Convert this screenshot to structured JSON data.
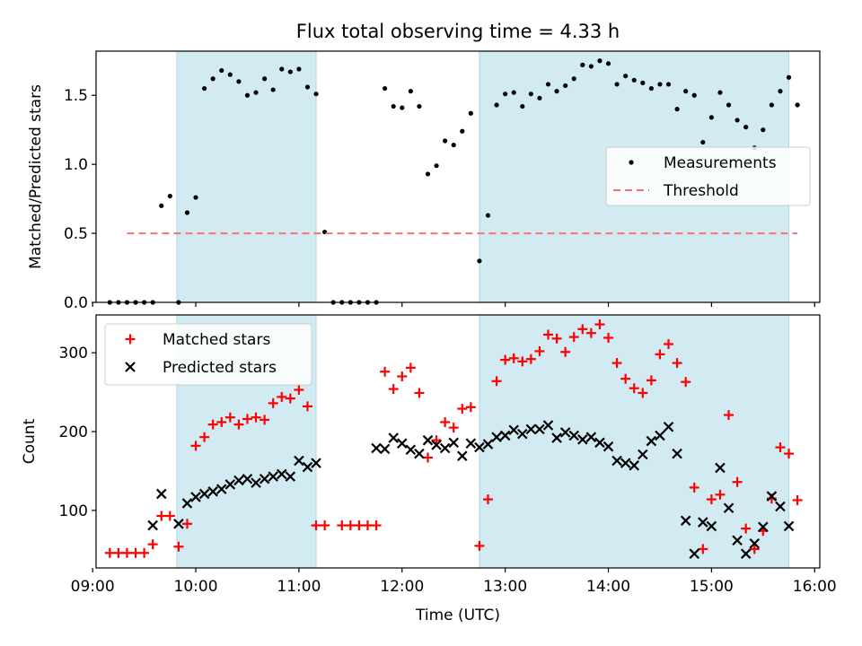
{
  "title": "Flux total observing time = 4.33 h",
  "colors": {
    "shade": "#add8e6",
    "measurement": "#000000",
    "threshold": "#ff7070",
    "matched": "#ff0000",
    "predicted": "#000000"
  },
  "chart_data": [
    {
      "type": "scatter",
      "ylabel": "Matched/Predicted stars",
      "ylim": [
        0,
        1.82
      ],
      "yticks": [
        0.0,
        0.5,
        1.0,
        1.5
      ],
      "ytick_labels": [
        "0.0",
        "0.5",
        "1.0",
        "1.5"
      ],
      "xlim": [
        "09:02",
        "16:03"
      ],
      "shaded_intervals": [
        [
          "09:49",
          "11:10"
        ],
        [
          "12:45",
          "15:45"
        ]
      ],
      "legend": {
        "location": "center right",
        "entries": [
          "Measurements",
          "Threshold"
        ]
      },
      "series": [
        {
          "name": "Measurements",
          "marker": "dot",
          "points": [
            [
              "09:10",
              0
            ],
            [
              "09:15",
              0
            ],
            [
              "09:20",
              0
            ],
            [
              "09:25",
              0
            ],
            [
              "09:30",
              0
            ],
            [
              "09:35",
              0
            ],
            [
              "09:40",
              0.7
            ],
            [
              "09:45",
              0.77
            ],
            [
              "09:50",
              0
            ],
            [
              "09:55",
              0.65
            ],
            [
              "10:00",
              0.76
            ],
            [
              "10:05",
              1.55
            ],
            [
              "10:10",
              1.62
            ],
            [
              "10:15",
              1.68
            ],
            [
              "10:20",
              1.65
            ],
            [
              "10:25",
              1.6
            ],
            [
              "10:30",
              1.5
            ],
            [
              "10:35",
              1.52
            ],
            [
              "10:40",
              1.62
            ],
            [
              "10:45",
              1.54
            ],
            [
              "10:50",
              1.69
            ],
            [
              "10:55",
              1.67
            ],
            [
              "11:00",
              1.69
            ],
            [
              "11:05",
              1.56
            ],
            [
              "11:10",
              1.51
            ],
            [
              "11:15",
              0.51
            ],
            [
              "11:20",
              0
            ],
            [
              "11:25",
              0
            ],
            [
              "11:30",
              0
            ],
            [
              "11:35",
              0
            ],
            [
              "11:40",
              0
            ],
            [
              "11:45",
              0
            ],
            [
              "11:50",
              1.55
            ],
            [
              "11:55",
              1.42
            ],
            [
              "12:00",
              1.41
            ],
            [
              "12:05",
              1.53
            ],
            [
              "12:10",
              1.42
            ],
            [
              "12:15",
              0.93
            ],
            [
              "12:20",
              0.99
            ],
            [
              "12:25",
              1.17
            ],
            [
              "12:30",
              1.14
            ],
            [
              "12:35",
              1.24
            ],
            [
              "12:40",
              1.37
            ],
            [
              "12:45",
              0.3
            ],
            [
              "12:50",
              0.63
            ],
            [
              "12:55",
              1.43
            ],
            [
              "13:00",
              1.51
            ],
            [
              "13:05",
              1.52
            ],
            [
              "13:10",
              1.42
            ],
            [
              "13:15",
              1.51
            ],
            [
              "13:20",
              1.48
            ],
            [
              "13:25",
              1.58
            ],
            [
              "13:30",
              1.53
            ],
            [
              "13:35",
              1.57
            ],
            [
              "13:40",
              1.62
            ],
            [
              "13:45",
              1.72
            ],
            [
              "13:50",
              1.71
            ],
            [
              "13:55",
              1.75
            ],
            [
              "14:00",
              1.73
            ],
            [
              "14:05",
              1.58
            ],
            [
              "14:10",
              1.64
            ],
            [
              "14:15",
              1.61
            ],
            [
              "14:20",
              1.59
            ],
            [
              "14:25",
              1.55
            ],
            [
              "14:30",
              1.58
            ],
            [
              "14:35",
              1.58
            ],
            [
              "14:40",
              1.4
            ],
            [
              "14:45",
              1.53
            ],
            [
              "14:50",
              1.5
            ],
            [
              "14:55",
              1.16
            ],
            [
              "15:00",
              1.34
            ],
            [
              "15:05",
              1.52
            ],
            [
              "15:10",
              1.43
            ],
            [
              "15:15",
              1.32
            ],
            [
              "15:20",
              1.27
            ],
            [
              "15:25",
              1.12
            ],
            [
              "15:30",
              1.25
            ],
            [
              "15:35",
              1.43
            ],
            [
              "15:40",
              1.53
            ],
            [
              "15:45",
              1.63
            ],
            [
              "15:50",
              1.43
            ]
          ]
        },
        {
          "name": "Threshold",
          "style": "dashed",
          "points": [
            [
              "09:20",
              0.5
            ],
            [
              "15:50",
              0.5
            ]
          ]
        }
      ]
    },
    {
      "type": "scatter",
      "xlabel": "Time (UTC)",
      "ylabel": "Count",
      "ylim": [
        27,
        348
      ],
      "yticks": [
        100,
        200,
        300
      ],
      "ytick_labels": [
        "100",
        "200",
        "300"
      ],
      "xlim": [
        "09:02",
        "16:03"
      ],
      "xticks": [
        "09:00",
        "10:00",
        "11:00",
        "12:00",
        "13:00",
        "14:00",
        "15:00",
        "16:00"
      ],
      "shaded_intervals": [
        [
          "09:49",
          "11:10"
        ],
        [
          "12:45",
          "15:45"
        ]
      ],
      "legend": {
        "location": "upper left",
        "entries": [
          "Matched stars",
          "Predicted stars"
        ]
      },
      "series": [
        {
          "name": "Matched stars",
          "marker": "plus",
          "points": [
            [
              "09:10",
              46
            ],
            [
              "09:15",
              46
            ],
            [
              "09:20",
              46
            ],
            [
              "09:25",
              46
            ],
            [
              "09:30",
              46
            ],
            [
              "09:35",
              57
            ],
            [
              "09:40",
              93
            ],
            [
              "09:45",
              93
            ],
            [
              "09:50",
              54
            ],
            [
              "09:55",
              83
            ],
            [
              "10:00",
              182
            ],
            [
              "10:05",
              193
            ],
            [
              "10:10",
              209
            ],
            [
              "10:15",
              212
            ],
            [
              "10:20",
              218
            ],
            [
              "10:25",
              209
            ],
            [
              "10:30",
              216
            ],
            [
              "10:35",
              218
            ],
            [
              "10:40",
              215
            ],
            [
              "10:45",
              236
            ],
            [
              "10:50",
              244
            ],
            [
              "10:55",
              242
            ],
            [
              "11:00",
              253
            ],
            [
              "11:05",
              232
            ],
            [
              "11:10",
              81
            ],
            [
              "11:15",
              81
            ],
            [
              "11:25",
              81
            ],
            [
              "11:30",
              81
            ],
            [
              "11:35",
              81
            ],
            [
              "11:40",
              81
            ],
            [
              "11:45",
              81
            ],
            [
              "11:50",
              276
            ],
            [
              "11:55",
              254
            ],
            [
              "12:00",
              270
            ],
            [
              "12:05",
              281
            ],
            [
              "12:10",
              249
            ],
            [
              "12:15",
              167
            ],
            [
              "12:20",
              189
            ],
            [
              "12:25",
              212
            ],
            [
              "12:30",
              205
            ],
            [
              "12:35",
              229
            ],
            [
              "12:40",
              231
            ],
            [
              "12:45",
              55
            ],
            [
              "12:50",
              114
            ],
            [
              "12:55",
              264
            ],
            [
              "13:00",
              291
            ],
            [
              "13:05",
              293
            ],
            [
              "13:10",
              289
            ],
            [
              "13:15",
              292
            ],
            [
              "13:20",
              302
            ],
            [
              "13:25",
              323
            ],
            [
              "13:30",
              318
            ],
            [
              "13:35",
              301
            ],
            [
              "13:40",
              320
            ],
            [
              "13:45",
              330
            ],
            [
              "13:50",
              325
            ],
            [
              "13:55",
              336
            ],
            [
              "14:00",
              319
            ],
            [
              "14:05",
              287
            ],
            [
              "14:10",
              267
            ],
            [
              "14:15",
              255
            ],
            [
              "14:20",
              249
            ],
            [
              "14:25",
              265
            ],
            [
              "14:30",
              298
            ],
            [
              "14:35",
              311
            ],
            [
              "14:40",
              287
            ],
            [
              "14:45",
              263
            ],
            [
              "14:50",
              129
            ],
            [
              "14:55",
              51
            ],
            [
              "15:00",
              114
            ],
            [
              "15:05",
              120
            ],
            [
              "15:10",
              221
            ],
            [
              "15:15",
              136
            ],
            [
              "15:20",
              77
            ],
            [
              "15:25",
              51
            ],
            [
              "15:30",
              74
            ],
            [
              "15:35",
              115
            ],
            [
              "15:40",
              180
            ],
            [
              "15:45",
              172
            ],
            [
              "15:50",
              113
            ]
          ]
        },
        {
          "name": "Predicted stars",
          "marker": "x",
          "points": [
            [
              "09:35",
              81
            ],
            [
              "09:40",
              121
            ],
            [
              "09:50",
              83
            ],
            [
              "09:55",
              109
            ],
            [
              "10:00",
              117
            ],
            [
              "10:05",
              121
            ],
            [
              "10:10",
              124
            ],
            [
              "10:15",
              127
            ],
            [
              "10:20",
              133
            ],
            [
              "10:25",
              138
            ],
            [
              "10:30",
              140
            ],
            [
              "10:35",
              135
            ],
            [
              "10:40",
              140
            ],
            [
              "10:45",
              143
            ],
            [
              "10:50",
              146
            ],
            [
              "10:55",
              143
            ],
            [
              "11:00",
              163
            ],
            [
              "11:05",
              155
            ],
            [
              "11:10",
              160
            ],
            [
              "11:45",
              179
            ],
            [
              "11:50",
              178
            ],
            [
              "11:55",
              192
            ],
            [
              "12:00",
              185
            ],
            [
              "12:05",
              177
            ],
            [
              "12:10",
              172
            ],
            [
              "12:15",
              189
            ],
            [
              "12:20",
              183
            ],
            [
              "12:25",
              179
            ],
            [
              "12:30",
              186
            ],
            [
              "12:35",
              169
            ],
            [
              "12:40",
              185
            ],
            [
              "12:45",
              180
            ],
            [
              "12:50",
              184
            ],
            [
              "12:55",
              193
            ],
            [
              "13:00",
              195
            ],
            [
              "13:05",
              202
            ],
            [
              "13:10",
              197
            ],
            [
              "13:15",
              203
            ],
            [
              "13:20",
              203
            ],
            [
              "13:25",
              208
            ],
            [
              "13:30",
              192
            ],
            [
              "13:35",
              199
            ],
            [
              "13:40",
              195
            ],
            [
              "13:45",
              190
            ],
            [
              "13:50",
              193
            ],
            [
              "13:55",
              186
            ],
            [
              "14:00",
              181
            ],
            [
              "14:05",
              163
            ],
            [
              "14:10",
              160
            ],
            [
              "14:15",
              157
            ],
            [
              "14:20",
              171
            ],
            [
              "14:25",
              188
            ],
            [
              "14:30",
              195
            ],
            [
              "14:35",
              206
            ],
            [
              "14:40",
              172
            ],
            [
              "14:45",
              87
            ],
            [
              "14:50",
              45
            ],
            [
              "14:55",
              85
            ],
            [
              "15:00",
              80
            ],
            [
              "15:05",
              154
            ],
            [
              "15:10",
              103
            ],
            [
              "15:15",
              62
            ],
            [
              "15:20",
              45
            ],
            [
              "15:25",
              58
            ],
            [
              "15:30",
              79
            ],
            [
              "15:35",
              118
            ],
            [
              "15:40",
              105
            ],
            [
              "15:45",
              80
            ]
          ]
        }
      ]
    }
  ]
}
